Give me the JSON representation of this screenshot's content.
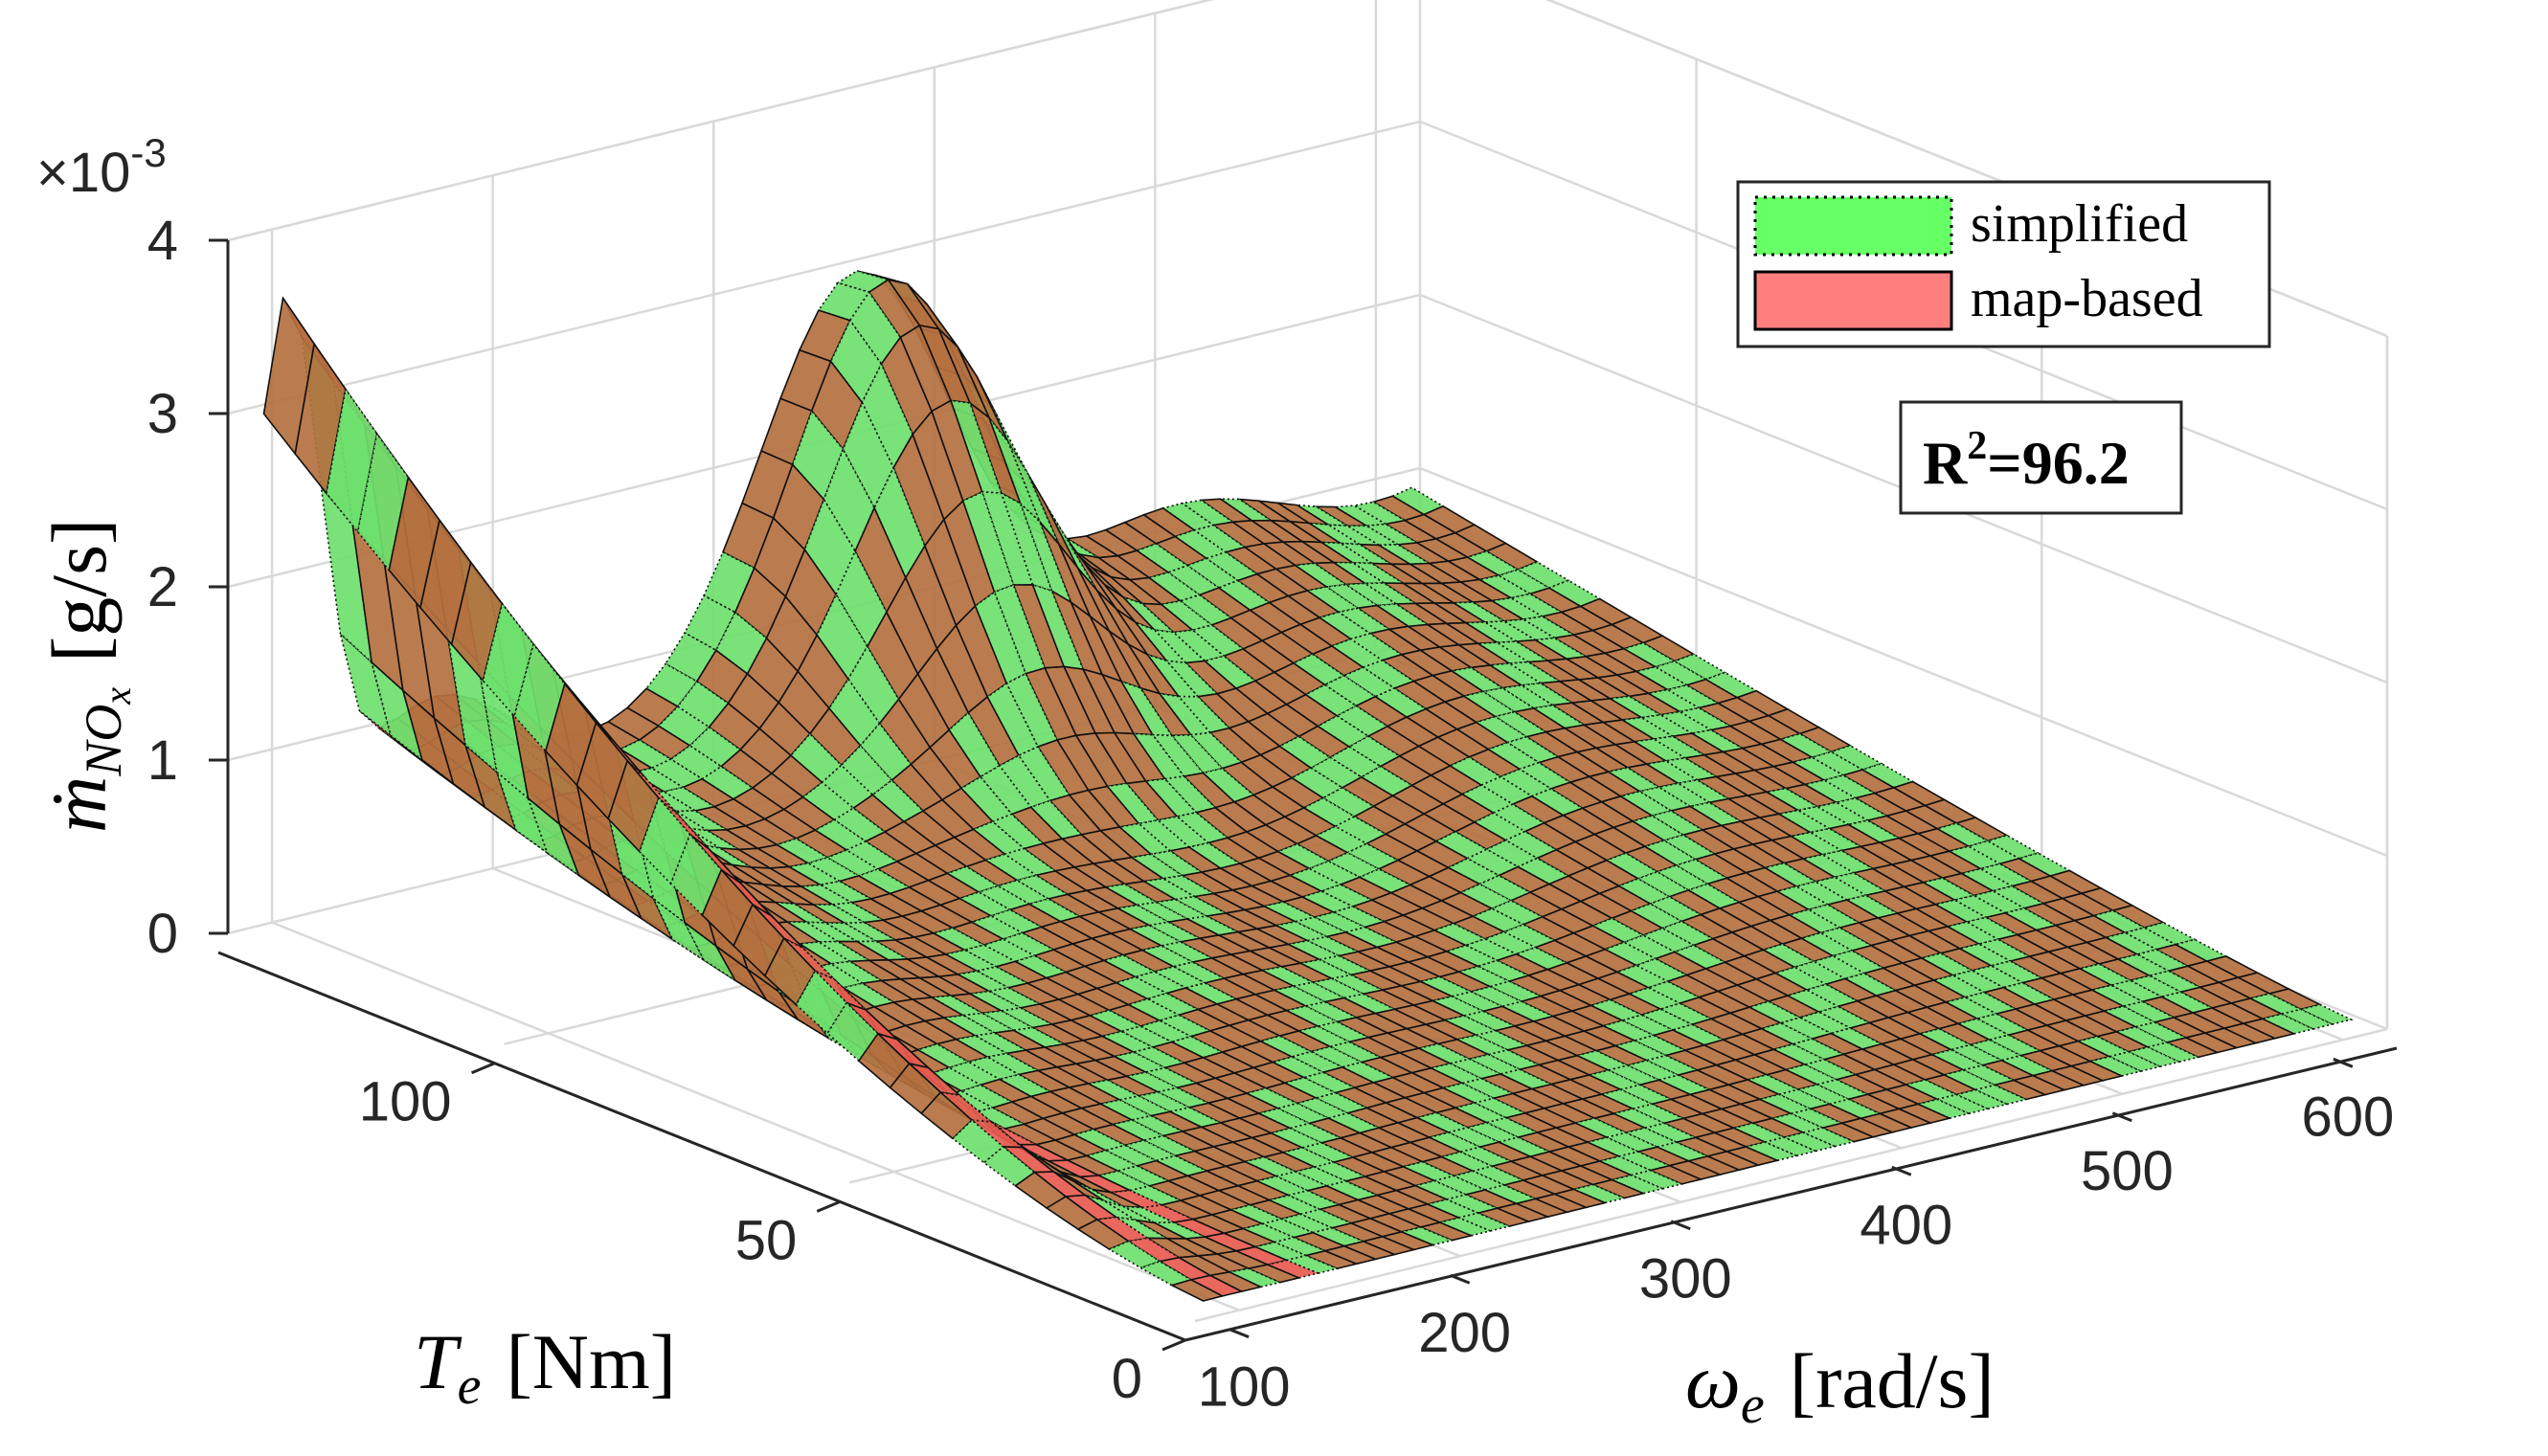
{
  "chart_data": {
    "type": "surface",
    "xlabel": "ω",
    "xlabel_sub": "e",
    "xlabel_unit": "[rad/s]",
    "ylabel": "T",
    "ylabel_sub": "e",
    "ylabel_unit": "[Nm]",
    "zlabel": "ṁ",
    "zlabel_sub": "NO",
    "zlabel_subsub": "x",
    "zlabel_unit": "[g/s]",
    "z_multiplier": "×10",
    "z_multiplier_exp": "-3",
    "x_ticks": [
      "100",
      "200",
      "300",
      "400",
      "500",
      "600"
    ],
    "y_ticks": [
      "0",
      "50",
      "100"
    ],
    "z_ticks": [
      "0",
      "1",
      "2",
      "3",
      "4"
    ],
    "xlim": [
      80,
      620
    ],
    "ylim": [
      0,
      140
    ],
    "zlim": [
      0,
      4.0
    ],
    "grid": true,
    "legend_position": "top-right",
    "series": [
      {
        "name": "simplified",
        "color": "#66ff66",
        "edge_style": "dotted"
      },
      {
        "name": "map-based",
        "color": "#ff7f7f",
        "edge_style": "solid"
      }
    ],
    "annotation": {
      "main": "R",
      "sup": "2",
      "rest": "=96.2"
    },
    "surface_colors": {
      "blend": "#b4703f",
      "green": "#6ee06e",
      "red": "#e85a50"
    }
  }
}
